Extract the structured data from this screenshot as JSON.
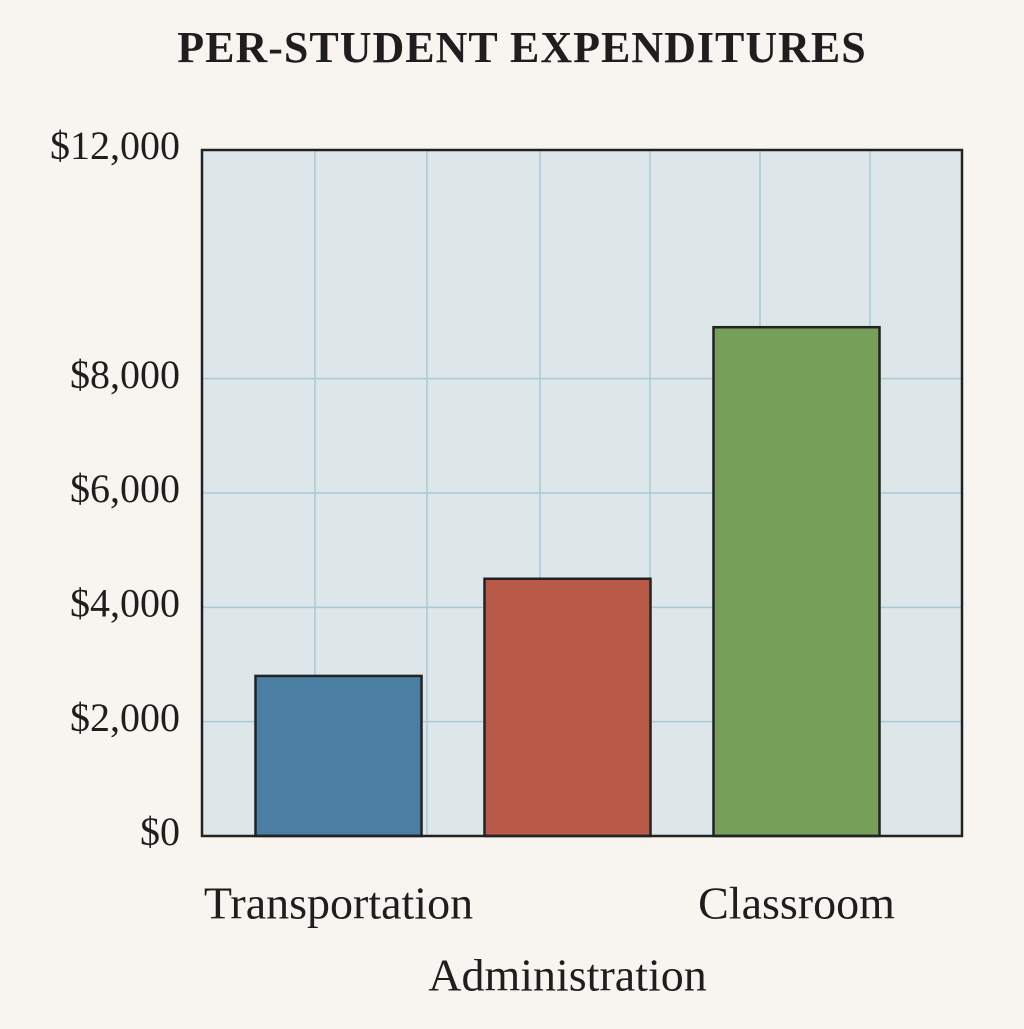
{
  "chart_data": {
    "type": "bar",
    "title": "PER-STUDENT EXPENDITURES",
    "categories": [
      "Transportation",
      "Administration",
      "Classroom"
    ],
    "series": [
      {
        "name": null,
        "colors": [
          "#4a7ea3",
          "#b95a49",
          "#76a05a"
        ],
        "values": [
          2800,
          4500,
          8900
        ]
      }
    ],
    "ylim": [
      0,
      12000
    ],
    "yticks": [
      {
        "value": 0,
        "label": "$0"
      },
      {
        "value": 2000,
        "label": "$2,000"
      },
      {
        "value": 4000,
        "label": "$4,000"
      },
      {
        "value": 6000,
        "label": "$6,000"
      },
      {
        "value": 8000,
        "label": "$8,000"
      },
      {
        "value": 12000,
        "label": "$12,000"
      }
    ],
    "grid": true
  }
}
